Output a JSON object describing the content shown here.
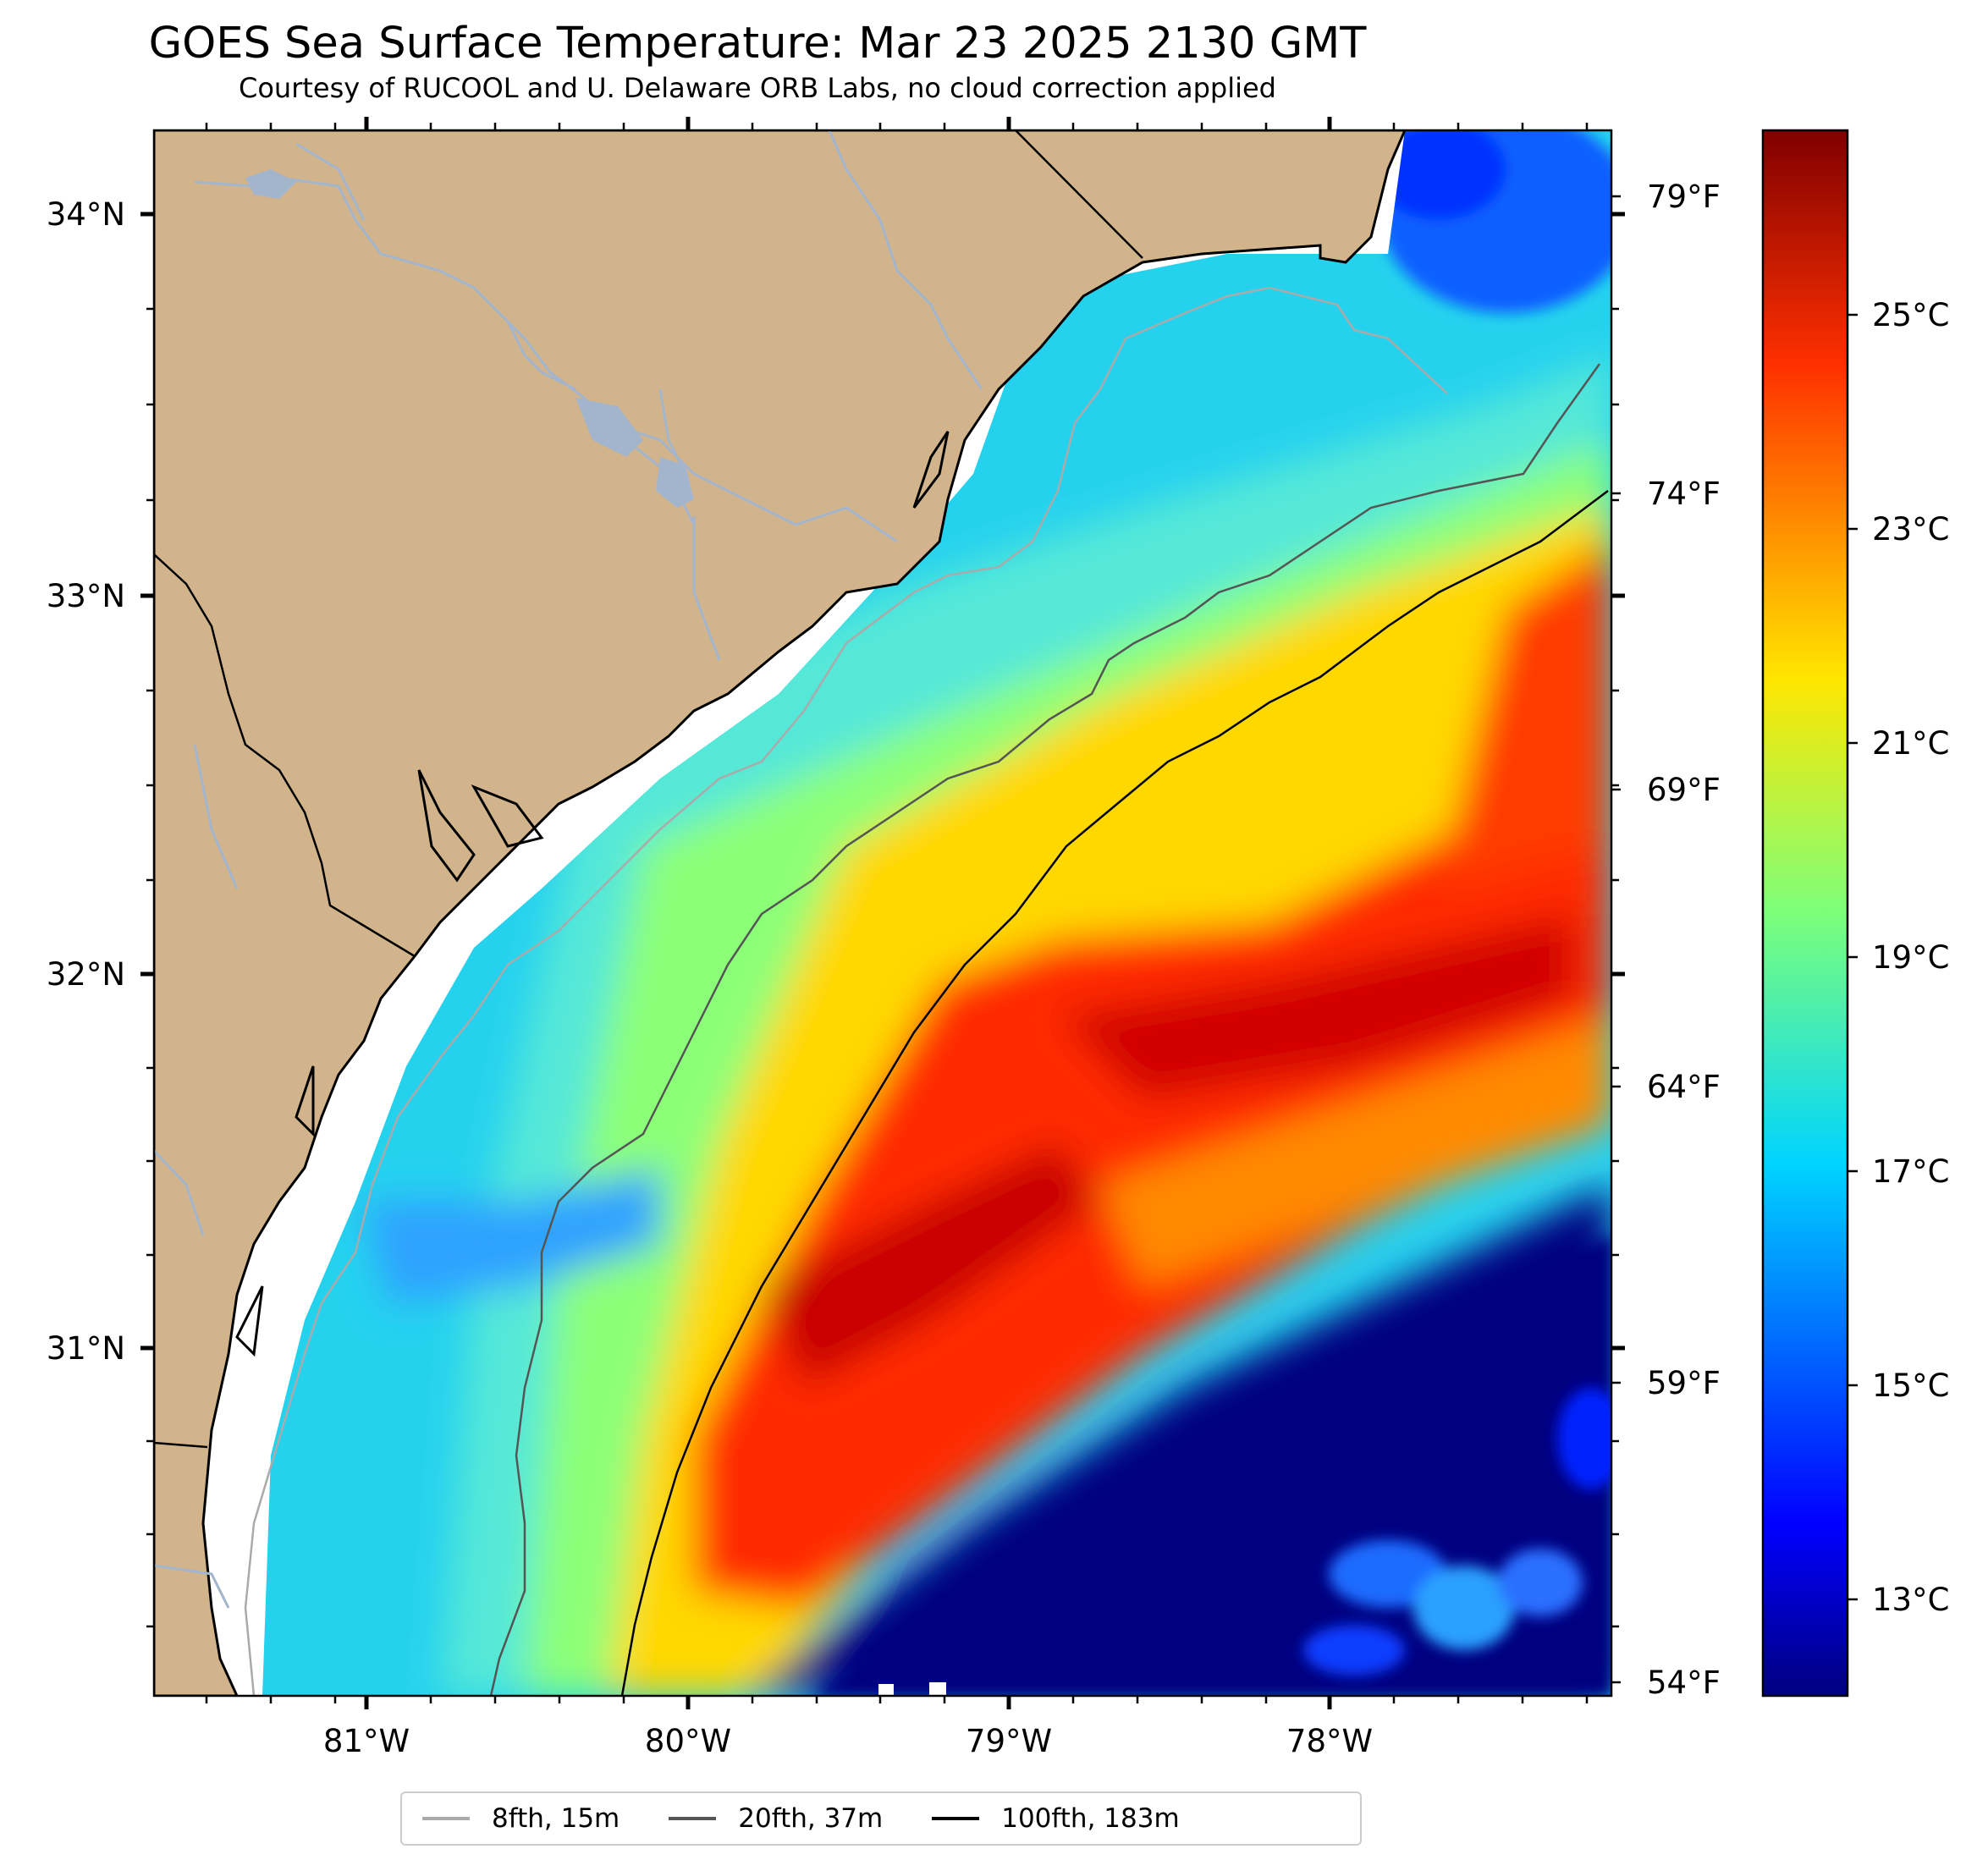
{
  "header": {
    "title": "GOES Sea Surface Temperature: Mar 23 2025 2130 GMT",
    "subtitle": "Courtesy of RUCOOL and U. Delaware ORB Labs, no cloud correction applied"
  },
  "map": {
    "lon_range": [
      -81.67,
      -77.12
    ],
    "lat_range": [
      30.09,
      34.22
    ],
    "lat_ticks": [
      "34°N",
      "33°N",
      "32°N",
      "31°N"
    ],
    "lon_ticks": [
      "81°W",
      "80°W",
      "79°W",
      "78°W"
    ],
    "fahrenheit_ticks": [
      "79°F",
      "74°F",
      "69°F",
      "64°F",
      "59°F",
      "54°F"
    ],
    "colors": {
      "land": "#d2b48c",
      "rivers": "#a3b5cc",
      "coastline": "#000000",
      "nodata": "#ffffff"
    }
  },
  "colorbar": {
    "label_values": [
      "25°C",
      "23°C",
      "21°C",
      "19°C",
      "17°C",
      "15°C",
      "13°C"
    ],
    "range_c": [
      12.2,
      26.8
    ],
    "colormap": "jet"
  },
  "legend": {
    "items": [
      {
        "label": "8fth, 15m",
        "color": "#aaaaaa"
      },
      {
        "label": "20fth, 37m",
        "color": "#555555"
      },
      {
        "label": "100fth, 183m",
        "color": "#000000"
      }
    ]
  }
}
